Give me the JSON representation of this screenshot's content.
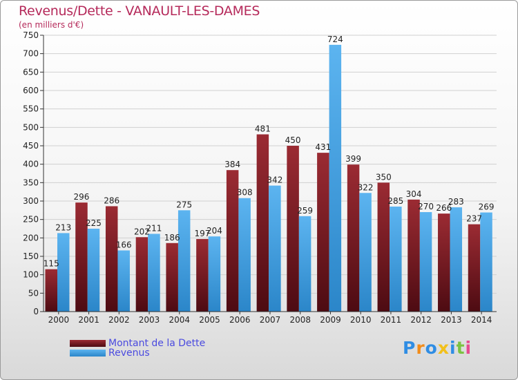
{
  "header": {
    "title": "Revenus/Dette - VANAULT-LES-DAMES",
    "subtitle": "(en milliers d'€)"
  },
  "colors": {
    "dette": "#7a1a22",
    "revenus": "#3d9ee0",
    "title": "#b5295a",
    "legend_text": "#4a4adf"
  },
  "logo": {
    "letters": [
      {
        "ch": "P",
        "color": "#2f8de4"
      },
      {
        "ch": "r",
        "color": "#f28c1a"
      },
      {
        "ch": "o",
        "color": "#2f8de4"
      },
      {
        "ch": "x",
        "color": "#f2c01a"
      },
      {
        "ch": "i",
        "color": "#2f8de4"
      },
      {
        "ch": "t",
        "color": "#7cc242"
      },
      {
        "ch": "i",
        "color": "#e84a8f"
      }
    ]
  },
  "chart_data": {
    "type": "bar",
    "title": "Revenus/Dette - VANAULT-LES-DAMES",
    "subtitle": "(en milliers d'€)",
    "categories": [
      "2000",
      "2001",
      "2002",
      "2003",
      "2004",
      "2005",
      "2006",
      "2007",
      "2008",
      "2009",
      "2010",
      "2011",
      "2012",
      "2013",
      "2014"
    ],
    "series": [
      {
        "name": "Montant de la Dette",
        "values": [
          115,
          296,
          286,
          202,
          186,
          197,
          384,
          481,
          450,
          431,
          399,
          350,
          304,
          266,
          237
        ]
      },
      {
        "name": "Revenus",
        "values": [
          213,
          225,
          166,
          211,
          275,
          204,
          308,
          342,
          259,
          724,
          322,
          285,
          270,
          283,
          269
        ]
      }
    ],
    "ylim": [
      0,
      750
    ],
    "yticks": [
      0,
      50,
      100,
      150,
      200,
      250,
      300,
      350,
      400,
      450,
      500,
      550,
      600,
      650,
      700,
      750
    ],
    "grid": true,
    "legend": "bottom-left"
  }
}
